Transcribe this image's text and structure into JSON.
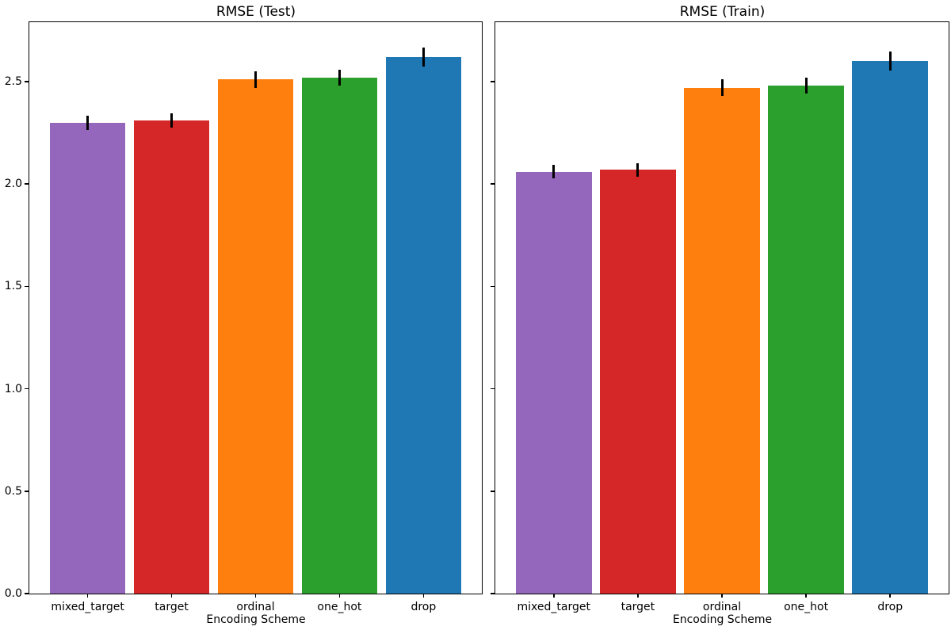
{
  "chart_data": [
    {
      "type": "bar",
      "title": "RMSE (Test)",
      "xlabel": "Encoding Scheme",
      "ylabel": "",
      "categories": [
        "mixed_target",
        "target",
        "ordinal",
        "one_hot",
        "drop"
      ],
      "values": [
        2.3,
        2.31,
        2.51,
        2.52,
        2.62
      ],
      "errors": [
        0.035,
        0.035,
        0.04,
        0.038,
        0.047
      ],
      "bar_colors": [
        "#9467bd",
        "#d62728",
        "#ff7f0e",
        "#2ca02c",
        "#1f77b4"
      ],
      "error_color": "#000000",
      "yticks": [
        0.0,
        0.5,
        1.0,
        1.5,
        2.0,
        2.5
      ],
      "ytick_labels": [
        "0.0",
        "0.5",
        "1.0",
        "1.5",
        "2.0",
        "2.5"
      ],
      "show_ytick_labels": true,
      "ylim": [
        0,
        2.79
      ],
      "xlim": [
        -0.695,
        4.695
      ],
      "bar_width_fraction": 0.9,
      "grid": false,
      "legend": null
    },
    {
      "type": "bar",
      "title": "RMSE (Train)",
      "xlabel": "Encoding Scheme",
      "ylabel": "",
      "categories": [
        "mixed_target",
        "target",
        "ordinal",
        "one_hot",
        "drop"
      ],
      "values": [
        2.06,
        2.07,
        2.47,
        2.48,
        2.6
      ],
      "errors": [
        0.032,
        0.033,
        0.04,
        0.04,
        0.048
      ],
      "bar_colors": [
        "#9467bd",
        "#d62728",
        "#ff7f0e",
        "#2ca02c",
        "#1f77b4"
      ],
      "error_color": "#000000",
      "yticks": [
        0.0,
        0.5,
        1.0,
        1.5,
        2.0,
        2.5
      ],
      "ytick_labels": [
        "0.0",
        "0.5",
        "1.0",
        "1.5",
        "2.0",
        "2.5"
      ],
      "show_ytick_labels": false,
      "ylim": [
        0,
        2.79
      ],
      "xlim": [
        -0.695,
        4.695
      ],
      "bar_width_fraction": 0.9,
      "grid": false,
      "legend": null
    }
  ]
}
